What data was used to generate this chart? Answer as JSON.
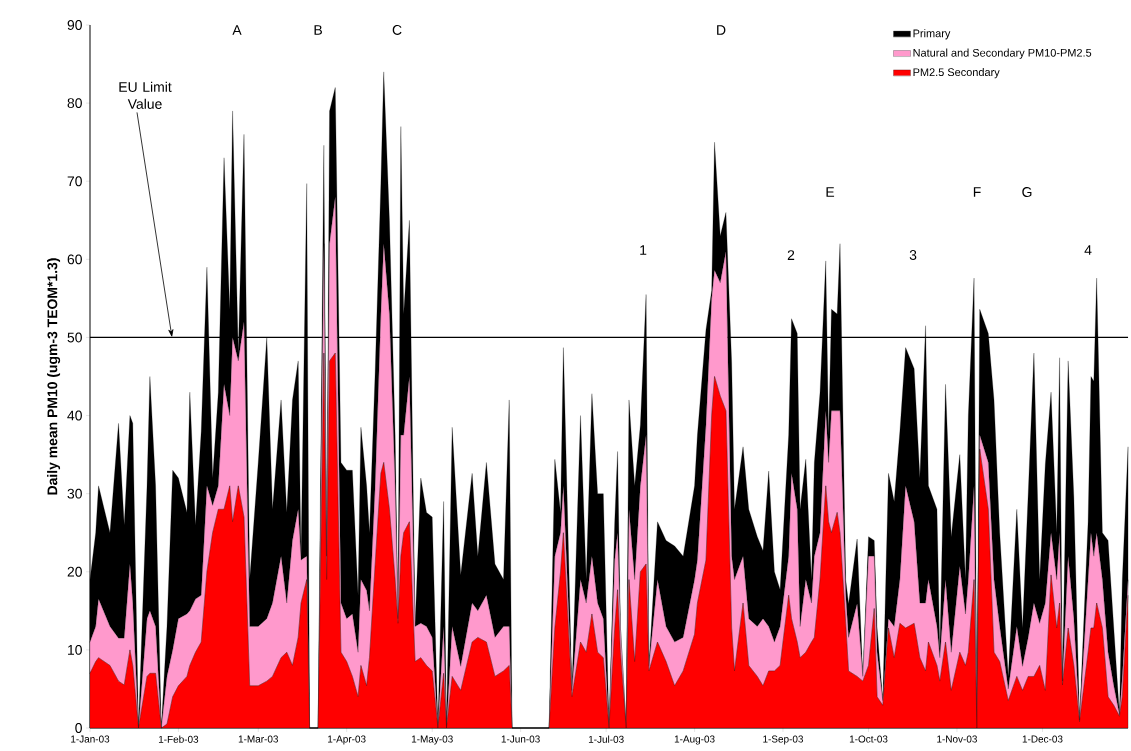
{
  "chart_data": {
    "type": "area",
    "stacked": true,
    "ylabel": "Daily mean PM10 (ugm-3 TEOM*1.3)",
    "xlim": [
      "2003-01-01",
      "2003-12-31"
    ],
    "ylim": [
      0,
      90
    ],
    "xticks": [
      {
        "value": "2003-01-01",
        "label": "1-Jan-03"
      },
      {
        "value": "2003-02-01",
        "label": "1-Feb-03"
      },
      {
        "value": "2003-03-01",
        "label": "1-Mar-03"
      },
      {
        "value": "2003-04-01",
        "label": "1-Apr-03"
      },
      {
        "value": "2003-05-01",
        "label": "1-May-03"
      },
      {
        "value": "2003-06-01",
        "label": "1-Jun-03"
      },
      {
        "value": "2003-07-01",
        "label": "1-Jul-03"
      },
      {
        "value": "2003-08-01",
        "label": "1-Aug-03"
      },
      {
        "value": "2003-09-01",
        "label": "1-Sep-03"
      },
      {
        "value": "2003-10-01",
        "label": "1-Oct-03"
      },
      {
        "value": "2003-11-01",
        "label": "1-Nov-03"
      },
      {
        "value": "2003-12-01",
        "label": "1-Dec-03"
      }
    ],
    "yticks": [
      0,
      10,
      20,
      30,
      40,
      50,
      60,
      70,
      80,
      90
    ],
    "legend": "top right",
    "x": [
      "2003-01-01",
      "2003-01-03",
      "2003-01-04",
      "2003-01-08",
      "2003-01-11",
      "2003-01-13",
      "2003-01-15",
      "2003-01-16",
      "2003-01-18",
      "2003-01-21",
      "2003-01-22",
      "2003-01-24",
      "2003-01-26",
      "2003-01-28",
      "2003-01-30",
      "2003-02-01",
      "2003-02-04",
      "2003-02-05",
      "2003-02-07",
      "2003-02-09",
      "2003-02-11",
      "2003-02-13",
      "2003-02-15",
      "2003-02-17",
      "2003-02-19",
      "2003-02-20",
      "2003-02-22",
      "2003-02-24",
      "2003-02-26",
      "2003-03-01",
      "2003-03-04",
      "2003-03-06",
      "2003-03-09",
      "2003-03-11",
      "2003-03-13",
      "2003-03-15",
      "2003-03-16",
      "2003-03-18",
      "2003-03-19",
      "2003-03-22",
      "2003-03-24",
      "2003-03-25",
      "2003-03-26",
      "2003-03-28",
      "2003-03-30",
      "2003-04-01",
      "2003-04-03",
      "2003-04-05",
      "2003-04-06",
      "2003-04-08",
      "2003-04-09",
      "2003-04-11",
      "2003-04-13",
      "2003-04-14",
      "2003-04-16",
      "2003-04-18",
      "2003-04-19",
      "2003-04-20",
      "2003-04-21",
      "2003-04-23",
      "2003-04-25",
      "2003-04-27",
      "2003-04-29",
      "2003-05-01",
      "2003-05-03",
      "2003-05-05",
      "2003-05-06",
      "2003-05-08",
      "2003-05-11",
      "2003-05-15",
      "2003-05-17",
      "2003-05-20",
      "2003-05-23",
      "2003-05-26",
      "2003-05-28",
      "2003-05-29",
      "2003-06-11",
      "2003-06-13",
      "2003-06-15",
      "2003-06-16",
      "2003-06-19",
      "2003-06-22",
      "2003-06-24",
      "2003-06-26",
      "2003-06-28",
      "2003-06-30",
      "2003-07-02",
      "2003-07-04",
      "2003-07-05",
      "2003-07-06",
      "2003-07-08",
      "2003-07-09",
      "2003-07-11",
      "2003-07-13",
      "2003-07-15",
      "2003-07-16",
      "2003-07-19",
      "2003-07-22",
      "2003-07-25",
      "2003-07-28",
      "2003-08-01",
      "2003-08-02",
      "2003-08-05",
      "2003-08-07",
      "2003-08-08",
      "2003-08-10",
      "2003-08-12",
      "2003-08-14",
      "2003-08-15",
      "2003-08-18",
      "2003-08-20",
      "2003-08-23",
      "2003-08-25",
      "2003-08-27",
      "2003-08-29",
      "2003-08-31",
      "2003-09-03",
      "2003-09-04",
      "2003-09-06",
      "2003-09-07",
      "2003-09-09",
      "2003-09-11",
      "2003-09-12",
      "2003-09-14",
      "2003-09-16",
      "2003-09-17",
      "2003-09-18",
      "2003-09-20",
      "2003-09-21",
      "2003-09-23",
      "2003-09-24",
      "2003-09-27",
      "2003-09-29",
      "2003-10-01",
      "2003-10-03",
      "2003-10-04",
      "2003-10-06",
      "2003-10-08",
      "2003-10-10",
      "2003-10-12",
      "2003-10-14",
      "2003-10-17",
      "2003-10-19",
      "2003-10-21",
      "2003-10-22",
      "2003-10-25",
      "2003-10-26",
      "2003-10-28",
      "2003-10-30",
      "2003-11-02",
      "2003-11-04",
      "2003-11-05",
      "2003-11-07",
      "2003-11-08",
      "2003-11-09",
      "2003-11-12",
      "2003-11-14",
      "2003-11-16",
      "2003-11-19",
      "2003-11-22",
      "2003-11-24",
      "2003-11-26",
      "2003-11-28",
      "2003-11-30",
      "2003-12-02",
      "2003-12-04",
      "2003-12-06",
      "2003-12-07",
      "2003-12-08",
      "2003-12-10",
      "2003-12-12",
      "2003-12-14",
      "2003-12-17",
      "2003-12-18",
      "2003-12-19",
      "2003-12-20",
      "2003-12-22",
      "2003-12-24",
      "2003-12-26",
      "2003-12-28",
      "2003-12-29",
      "2003-12-31"
    ],
    "series": [
      {
        "name": "PM2.5 Secondary",
        "color": "#ff0000",
        "values": [
          7,
          8.5,
          9,
          8,
          6,
          5.5,
          10,
          8,
          0,
          6.6,
          7,
          7,
          0,
          0.5,
          4,
          5.4,
          6.6,
          8,
          9.7,
          11,
          20,
          25,
          28,
          28,
          31,
          26.4,
          31,
          27,
          5.4,
          5.4,
          6,
          6.6,
          9,
          9.7,
          8,
          11.6,
          16,
          19,
          0,
          0,
          48,
          19,
          47,
          48,
          9.7,
          8.5,
          6.6,
          4,
          8,
          5.4,
          9,
          21,
          32.6,
          34,
          28,
          19,
          13.4,
          22,
          25,
          26.4,
          8.5,
          9,
          8,
          7.3,
          0,
          7,
          0,
          6.6,
          4.8,
          11,
          11.6,
          11,
          6.6,
          7.3,
          8,
          0,
          0,
          12.8,
          20,
          25,
          4,
          11,
          9.7,
          14.6,
          9.7,
          9,
          0,
          12.8,
          17.7,
          9.7,
          0,
          19,
          8.5,
          20,
          21,
          7.3,
          11,
          8.5,
          5.4,
          7.3,
          12,
          16,
          21.5,
          40,
          45,
          42.5,
          40.6,
          12.8,
          7.3,
          16,
          8,
          6.6,
          5.4,
          7.3,
          7.3,
          8,
          17,
          14,
          11,
          9,
          9.7,
          11,
          11.6,
          19,
          31,
          26.4,
          25,
          27.6,
          25,
          13.4,
          7.3,
          6.6,
          6,
          8,
          15.3,
          4,
          2.9,
          12.8,
          9,
          13.4,
          12.8,
          13.4,
          9,
          7.3,
          11,
          8,
          6,
          11,
          4.8,
          9.7,
          8,
          9.7,
          19,
          0,
          35.7,
          28,
          9.7,
          8.5,
          3.5,
          6.6,
          4.8,
          6.6,
          6.6,
          8,
          4.8,
          19.6,
          12.8,
          16,
          5.5,
          12.8,
          8,
          0.8,
          9.7,
          12.8,
          12.8,
          16,
          12.8,
          4,
          2.9,
          1.5,
          4,
          17
        ]
      },
      {
        "name": "Natural and Secondary PM10-PM2.5",
        "color": "#ff99cc",
        "values": [
          4,
          4.5,
          7.5,
          5,
          5.5,
          6,
          11,
          8,
          0,
          7.4,
          8,
          6,
          0,
          6.1,
          6,
          8.6,
          8,
          7,
          6.8,
          6,
          11,
          3.5,
          3,
          16,
          9,
          23.6,
          16,
          25,
          7.6,
          7.6,
          8,
          9.4,
          13,
          6.3,
          16,
          16.4,
          5.5,
          3,
          0,
          0,
          14,
          3,
          15,
          20,
          6.3,
          5.5,
          8,
          5.7,
          11,
          12.2,
          6,
          10,
          20.4,
          28,
          25,
          12,
          0.6,
          15.5,
          12.5,
          18.6,
          4.5,
          4.4,
          5,
          4.3,
          0,
          6,
          0,
          6.4,
          3.1,
          5,
          3.4,
          6,
          5,
          5.7,
          5,
          0,
          0,
          9.2,
          5,
          6,
          0.8,
          8,
          6.3,
          7.4,
          6.3,
          5,
          0,
          8.7,
          7.3,
          3.1,
          0,
          9,
          10.5,
          11,
          16.5,
          0.6,
          8,
          4.5,
          5.6,
          4.3,
          7,
          5.5,
          17.3,
          15,
          13.6,
          14.5,
          20.4,
          9.2,
          11.7,
          6,
          6,
          6.4,
          8.6,
          5.7,
          3.7,
          5,
          5,
          18.6,
          17,
          4,
          9.3,
          5,
          10.4,
          6,
          9.6,
          7.6,
          15.6,
          13,
          15.6,
          3.6,
          4.3,
          9.3,
          0.6,
          14,
          6.7,
          5.7,
          0.6,
          1.2,
          4,
          5.6,
          18.2,
          13,
          7,
          8.7,
          8,
          5,
          3,
          8,
          4.9,
          11,
          6.6,
          9.3,
          12,
          0,
          1.8,
          6,
          9.3,
          4.5,
          1.5,
          6.4,
          3.1,
          5,
          9.4,
          5.4,
          11.2,
          5.4,
          6.2,
          9,
          0.5,
          9.2,
          6,
          0.2,
          9.3,
          12.2,
          9.2,
          9,
          6.2,
          5.7,
          2.5,
          0.2,
          2.6,
          2
        ]
      },
      {
        "name": "Primary",
        "color": "#000000",
        "values": [
          8,
          12,
          14.5,
          12,
          27.5,
          14.5,
          19,
          23,
          0,
          17,
          30,
          18,
          0,
          6.4,
          23,
          18,
          13,
          28,
          9.5,
          21,
          28,
          3.5,
          12,
          29,
          13.6,
          29,
          1,
          24,
          6,
          21,
          36,
          12,
          20,
          11.6,
          18,
          19,
          0.5,
          47.7,
          0,
          0,
          12.6,
          0,
          17,
          14,
          18,
          19,
          18.4,
          7.3,
          19.5,
          13.4,
          10,
          14.6,
          16.7,
          22,
          12,
          6.5,
          0,
          39.5,
          15.5,
          20,
          0,
          18.6,
          14.6,
          15.4,
          0,
          16,
          0,
          25.5,
          11.7,
          16.6,
          7,
          17,
          9.4,
          6,
          29,
          0,
          0,
          12.4,
          2.6,
          17.7,
          0,
          21,
          3,
          20.8,
          14,
          16,
          0,
          4.9,
          10.4,
          0,
          0,
          14,
          12,
          7.8,
          18,
          0,
          7.4,
          11,
          12.3,
          10.4,
          12,
          16,
          12.2,
          1,
          16.4,
          6,
          5,
          24.8,
          9,
          14,
          14,
          11.5,
          8.7,
          19.9,
          9,
          4.7,
          15.5,
          19.8,
          22.5,
          15,
          15.4,
          3,
          12,
          18,
          19.2,
          3.5,
          13,
          12.4,
          21.4,
          2,
          4.3,
          8.3,
          0,
          2.5,
          2,
          3.1,
          0,
          18.6,
          16,
          19,
          17.7,
          19.6,
          16,
          35.5,
          12,
          15,
          0.7,
          25,
          14.8,
          14.3,
          4.4,
          21,
          26.6,
          0,
          16.1,
          16.5,
          23,
          12,
          1.6,
          15,
          4.9,
          18.4,
          32,
          5.6,
          17.8,
          18,
          6,
          22.4,
          0,
          25,
          15.5,
          0,
          7.4,
          20,
          22.4,
          32.6,
          6,
          14.3,
          7.4,
          0,
          12.4,
          17
        ]
      }
    ],
    "ref_lines": [
      {
        "axis": "y",
        "value": 50,
        "label": "EU Limit Value"
      }
    ],
    "annotations": [
      "A",
      "B",
      "C",
      "D",
      "E",
      "F",
      "G",
      "1",
      "2",
      "3",
      "4"
    ]
  }
}
